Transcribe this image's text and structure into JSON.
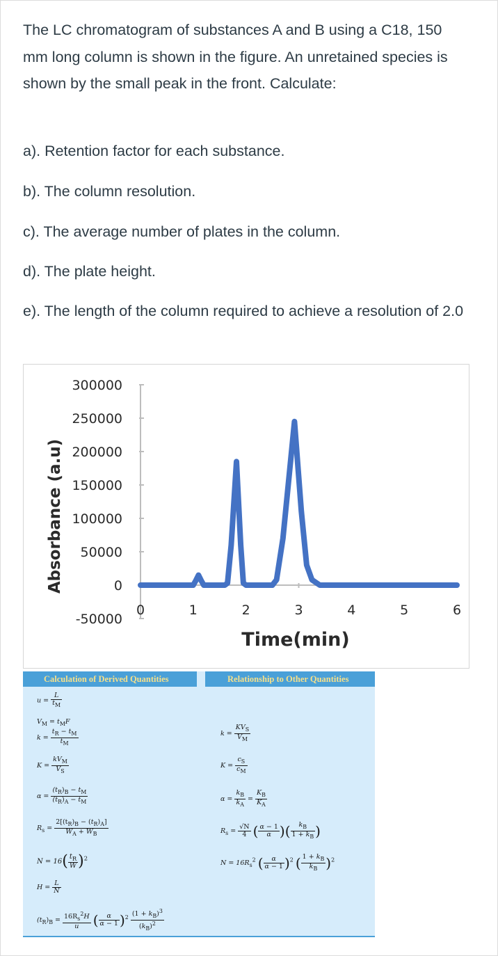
{
  "question": {
    "intro": "The LC chromatogram of substances A and B using a C18, 150 mm long column is shown in the figure. An unretained species is shown by the small peak in the front. Calculate:",
    "items": [
      "a). Retention factor for each substance.",
      "b). The column resolution.",
      "c). The average number of plates in the column.",
      "d). The plate height.",
      "e). The length of the column required to achieve a resolution of 2.0"
    ]
  },
  "chart_data": {
    "type": "line",
    "xlabel": "Time(min)",
    "ylabel": "Absorbance (a.u)",
    "xlim": [
      0,
      6
    ],
    "ylim": [
      -50000,
      300000
    ],
    "x_ticks": [
      "0",
      "1",
      "2",
      "3",
      "4",
      "5",
      "6"
    ],
    "y_ticks": [
      "300000",
      "250000",
      "200000",
      "150000",
      "100000",
      "50000",
      "0",
      "-50000"
    ],
    "series_color": "#4472c4",
    "x": [
      0,
      1.0,
      1.05,
      1.1,
      1.15,
      1.2,
      1.6,
      1.65,
      1.72,
      1.82,
      1.9,
      1.95,
      2.0,
      2.5,
      2.58,
      2.7,
      2.92,
      3.05,
      3.15,
      3.25,
      3.4,
      3.6,
      3.8,
      6.0
    ],
    "y": [
      0,
      0,
      7000,
      15000,
      7000,
      0,
      0,
      3000,
      60000,
      185000,
      60000,
      3000,
      0,
      0,
      8000,
      70000,
      245000,
      110000,
      30000,
      8000,
      0,
      0,
      0,
      0
    ]
  },
  "formulas": {
    "left_header": "Calculation of Derived Quantities",
    "right_header": "Relationship to Other Quantities",
    "left": {
      "u_lhs": "u =",
      "u_num": "L",
      "u_den": "t",
      "vm": "V",
      "k_lhs": "k =",
      "k_num": "t",
      "k_den": "t",
      "K_lhs": "K =",
      "K_num": "kV",
      "K_den": "V",
      "alpha_lhs": "α =",
      "alpha_num": "(t",
      "alpha_den": "(t",
      "Rs_lhs": "R",
      "Rs_num": "2[(t",
      "Rs_den": "W",
      "N_lhs": "N = 16",
      "H_lhs": "H =",
      "H_num": "L",
      "H_den": "N",
      "tR_lhs": "(t",
      "tR_num": "16R",
      "tR_den": "u"
    },
    "right": {
      "k_lhs": "k =",
      "k_num": "KV",
      "k_den": "V",
      "K_lhs": "K =",
      "K_num": "c",
      "K_den": "c",
      "alpha_lhs": "α =",
      "alpha_num": "k",
      "alpha_den": "k",
      "Rs_lhs": "R",
      "Rs_num": "√N",
      "Rs_den": "4",
      "N_lhs": "N = 16R"
    }
  }
}
